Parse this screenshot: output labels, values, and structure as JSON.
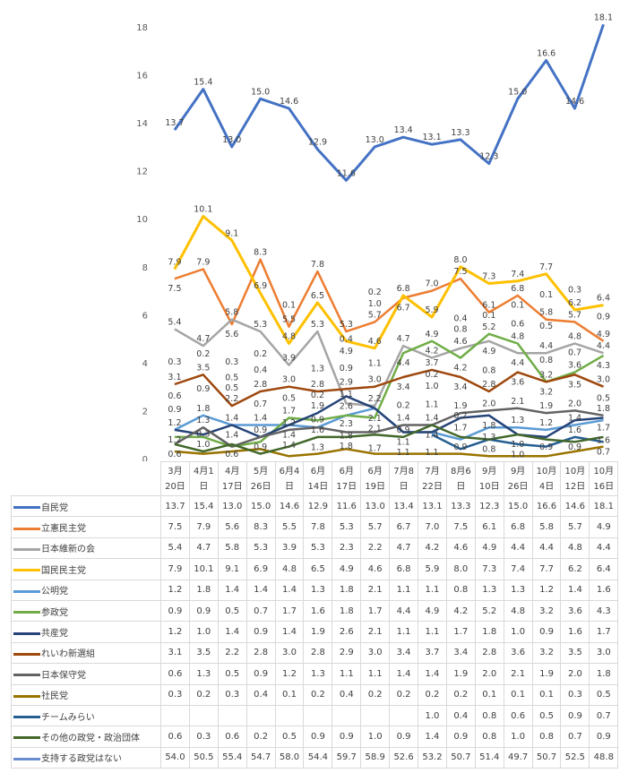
{
  "chart_data": {
    "type": "line",
    "title": "",
    "xlabel": "",
    "ylabel": "",
    "ylim": [
      0,
      18
    ],
    "yticks": [
      0,
      2,
      4,
      6,
      8,
      10,
      12,
      14,
      16,
      18
    ],
    "grid": false,
    "legend": "data-table-below",
    "categories": [
      [
        "3月",
        "20日"
      ],
      [
        "4月1",
        "日"
      ],
      [
        "4月",
        "17日"
      ],
      [
        "5月",
        "26日"
      ],
      [
        "6月4",
        "日"
      ],
      [
        "6月",
        "14日"
      ],
      [
        "6月",
        "17日"
      ],
      [
        "6月",
        "19日"
      ],
      [
        "7月8",
        "日"
      ],
      [
        "7月",
        "22日"
      ],
      [
        "8月6",
        "日"
      ],
      [
        "9月",
        "10日"
      ],
      [
        "9月",
        "26日"
      ],
      [
        "10月",
        "4日"
      ],
      [
        "10月",
        "12日"
      ],
      [
        "10月",
        "16日"
      ]
    ],
    "series": [
      {
        "name": "自民党",
        "color": "#4472C4",
        "plotted": true,
        "values": [
          13.7,
          15.4,
          13.0,
          15.0,
          14.6,
          12.9,
          11.6,
          13.0,
          13.4,
          13.1,
          13.3,
          12.3,
          15.0,
          16.6,
          14.6,
          18.1
        ]
      },
      {
        "name": "立憲民主党",
        "color": "#ED7D31",
        "plotted": true,
        "values": [
          7.5,
          7.9,
          5.6,
          8.3,
          5.5,
          7.8,
          5.3,
          5.7,
          6.7,
          7.0,
          7.5,
          6.1,
          6.8,
          5.8,
          5.7,
          4.9
        ]
      },
      {
        "name": "日本維新の会",
        "color": "#A5A5A5",
        "plotted": true,
        "values": [
          5.4,
          4.7,
          5.8,
          5.3,
          3.9,
          5.3,
          2.3,
          2.2,
          4.7,
          4.2,
          4.6,
          4.9,
          4.4,
          4.4,
          4.8,
          4.4
        ]
      },
      {
        "name": "国民民主党",
        "color": "#FFC000",
        "plotted": true,
        "values": [
          7.9,
          10.1,
          9.1,
          6.9,
          4.8,
          6.5,
          4.9,
          4.6,
          6.8,
          5.9,
          8.0,
          7.3,
          7.4,
          7.7,
          6.2,
          6.4
        ]
      },
      {
        "name": "公明党",
        "color": "#5B9BD5",
        "plotted": true,
        "values": [
          1.2,
          1.8,
          1.4,
          1.4,
          1.4,
          1.3,
          1.8,
          2.1,
          1.1,
          1.1,
          0.8,
          1.3,
          1.3,
          1.2,
          1.4,
          1.6
        ]
      },
      {
        "name": "参政党",
        "color": "#70AD47",
        "plotted": true,
        "values": [
          0.9,
          0.9,
          0.5,
          0.7,
          1.7,
          1.6,
          1.8,
          1.7,
          4.4,
          4.9,
          4.2,
          5.2,
          4.8,
          3.2,
          3.6,
          4.3
        ]
      },
      {
        "name": "共産党",
        "color": "#264478",
        "plotted": true,
        "values": [
          1.2,
          1.0,
          1.4,
          0.9,
          1.4,
          1.9,
          2.6,
          2.1,
          1.1,
          1.1,
          1.7,
          1.8,
          1.0,
          0.9,
          1.6,
          1.7
        ]
      },
      {
        "name": "れいわ新選組",
        "color": "#9E480E",
        "plotted": true,
        "values": [
          3.1,
          3.5,
          2.2,
          2.8,
          3.0,
          2.8,
          2.9,
          3.0,
          3.4,
          3.7,
          3.4,
          2.8,
          3.6,
          3.2,
          3.5,
          3.0
        ]
      },
      {
        "name": "日本保守党",
        "color": "#636363",
        "plotted": true,
        "values": [
          0.6,
          1.3,
          0.5,
          0.9,
          1.2,
          1.3,
          1.1,
          1.1,
          1.4,
          1.4,
          1.9,
          2.0,
          2.1,
          1.9,
          2.0,
          1.8
        ]
      },
      {
        "name": "社民党",
        "color": "#997300",
        "plotted": true,
        "values": [
          0.3,
          0.2,
          0.3,
          0.4,
          0.1,
          0.2,
          0.4,
          0.2,
          0.2,
          0.2,
          0.2,
          0.1,
          0.1,
          0.1,
          0.3,
          0.5
        ]
      },
      {
        "name": "チームみらい",
        "color": "#255E91",
        "plotted": true,
        "values": [
          null,
          null,
          null,
          null,
          null,
          null,
          null,
          null,
          null,
          1.0,
          0.4,
          0.8,
          0.6,
          0.5,
          0.9,
          0.7
        ]
      },
      {
        "name": "その他の政党・政治団体",
        "color": "#43682B",
        "plotted": true,
        "values": [
          0.6,
          0.3,
          0.6,
          0.2,
          0.5,
          0.9,
          0.9,
          1.0,
          0.9,
          1.4,
          0.9,
          0.8,
          1.0,
          0.8,
          0.7,
          0.9
        ]
      },
      {
        "name": "支持する政党はない",
        "color": "#698ED0",
        "plotted": false,
        "values": [
          54.0,
          50.5,
          55.4,
          54.7,
          58.0,
          54.4,
          59.7,
          58.9,
          52.6,
          53.2,
          50.7,
          51.4,
          49.7,
          50.7,
          52.5,
          48.8
        ]
      }
    ]
  }
}
